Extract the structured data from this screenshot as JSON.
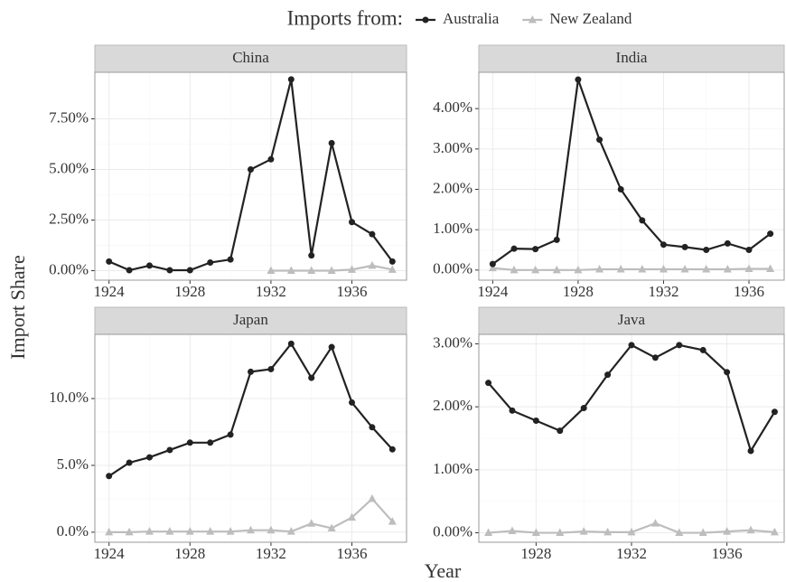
{
  "legend_title": "Imports from:",
  "y_label": "Import Share",
  "x_label": "Year",
  "chart_data": [
    {
      "type": "line",
      "title": "China",
      "x": [
        1924,
        1925,
        1926,
        1927,
        1928,
        1929,
        1930,
        1931,
        1932,
        1933,
        1934,
        1935,
        1936,
        1937,
        1938
      ],
      "series": [
        {
          "name": "Australia",
          "color": "#222222",
          "marker": "circle",
          "values": [
            0.45,
            0.02,
            0.25,
            0.02,
            0.02,
            0.4,
            0.55,
            5.0,
            5.5,
            9.45,
            0.75,
            6.3,
            2.4,
            1.8,
            0.45
          ]
        },
        {
          "name": "New Zealand",
          "color": "#bdbdbd",
          "marker": "triangle",
          "values": [
            null,
            null,
            null,
            null,
            null,
            null,
            null,
            null,
            0,
            0,
            0,
            0,
            0.05,
            0.25,
            0.05
          ]
        }
      ],
      "xlim": [
        1923.3,
        1938.7
      ],
      "ylim": [
        -0.47,
        9.8
      ],
      "xticks": [
        1924,
        1928,
        1932,
        1936
      ],
      "yticks": [
        {
          "value": 0,
          "label": "0.00%"
        },
        {
          "value": 2.5,
          "label": "2.50%"
        },
        {
          "value": 5,
          "label": "5.00%"
        },
        {
          "value": 7.5,
          "label": "7.50%"
        }
      ],
      "grid": true
    },
    {
      "type": "line",
      "title": "India",
      "x": [
        1924,
        1925,
        1926,
        1927,
        1928,
        1929,
        1930,
        1931,
        1932,
        1933,
        1934,
        1935,
        1936,
        1937
      ],
      "series": [
        {
          "name": "Australia",
          "color": "#222222",
          "marker": "circle",
          "values": [
            0.15,
            0.53,
            0.52,
            0.75,
            4.72,
            3.23,
            2.0,
            1.23,
            0.63,
            0.57,
            0.5,
            0.66,
            0.5,
            0.9
          ]
        },
        {
          "name": "New Zealand",
          "color": "#bdbdbd",
          "marker": "triangle",
          "values": [
            0.05,
            0,
            0,
            0,
            0,
            0.02,
            0.02,
            0.02,
            0.02,
            0.02,
            0.02,
            0.02,
            0.03,
            0.03
          ]
        }
      ],
      "xlim": [
        1923.35,
        1937.65
      ],
      "ylim": [
        -0.25,
        4.9
      ],
      "xticks": [
        1924,
        1928,
        1932,
        1936
      ],
      "yticks": [
        {
          "value": 0,
          "label": "0.00%"
        },
        {
          "value": 1,
          "label": "1.00%"
        },
        {
          "value": 2,
          "label": "2.00%"
        },
        {
          "value": 3,
          "label": "3.00%"
        },
        {
          "value": 4,
          "label": "4.00%"
        }
      ],
      "grid": true
    },
    {
      "type": "line",
      "title": "Japan",
      "x": [
        1924,
        1925,
        1926,
        1927,
        1928,
        1929,
        1930,
        1931,
        1932,
        1933,
        1934,
        1935,
        1936,
        1937,
        1938
      ],
      "series": [
        {
          "name": "Australia",
          "color": "#222222",
          "marker": "circle",
          "values": [
            4.2,
            5.2,
            5.6,
            6.15,
            6.7,
            6.7,
            7.3,
            12.0,
            12.2,
            14.1,
            11.55,
            13.85,
            9.7,
            7.85,
            6.2
          ]
        },
        {
          "name": "New Zealand",
          "color": "#bdbdbd",
          "marker": "triangle",
          "values": [
            0,
            0,
            0.05,
            0.05,
            0.05,
            0.05,
            0.05,
            0.15,
            0.15,
            0.05,
            0.65,
            0.3,
            1.1,
            2.5,
            0.8
          ]
        }
      ],
      "xlim": [
        1923.3,
        1938.7
      ],
      "ylim": [
        -0.75,
        14.8
      ],
      "xticks": [
        1924,
        1928,
        1932,
        1936
      ],
      "yticks": [
        {
          "value": 0,
          "label": "0.0%"
        },
        {
          "value": 5,
          "label": "5.0%"
        },
        {
          "value": 10,
          "label": "10.0%"
        }
      ],
      "grid": true
    },
    {
      "type": "line",
      "title": "Java",
      "x": [
        1926,
        1927,
        1928,
        1929,
        1930,
        1931,
        1932,
        1933,
        1934,
        1935,
        1936,
        1937,
        1938
      ],
      "series": [
        {
          "name": "Australia",
          "color": "#222222",
          "marker": "circle",
          "values": [
            2.38,
            1.94,
            1.78,
            1.62,
            1.98,
            2.51,
            2.98,
            2.78,
            2.98,
            2.9,
            2.55,
            1.3,
            1.92
          ]
        },
        {
          "name": "New Zealand",
          "color": "#bdbdbd",
          "marker": "triangle",
          "values": [
            0,
            0.03,
            0,
            0,
            0.02,
            0.01,
            0.01,
            0.15,
            0,
            0,
            0.02,
            0.04,
            0.01
          ]
        }
      ],
      "xlim": [
        1925.6,
        1938.4
      ],
      "ylim": [
        -0.15,
        3.15
      ],
      "xticks": [
        1928,
        1932,
        1936
      ],
      "yticks": [
        {
          "value": 0,
          "label": "0.00%"
        },
        {
          "value": 1,
          "label": "1.00%"
        },
        {
          "value": 2,
          "label": "2.00%"
        },
        {
          "value": 3,
          "label": "3.00%"
        }
      ],
      "grid": true
    }
  ]
}
